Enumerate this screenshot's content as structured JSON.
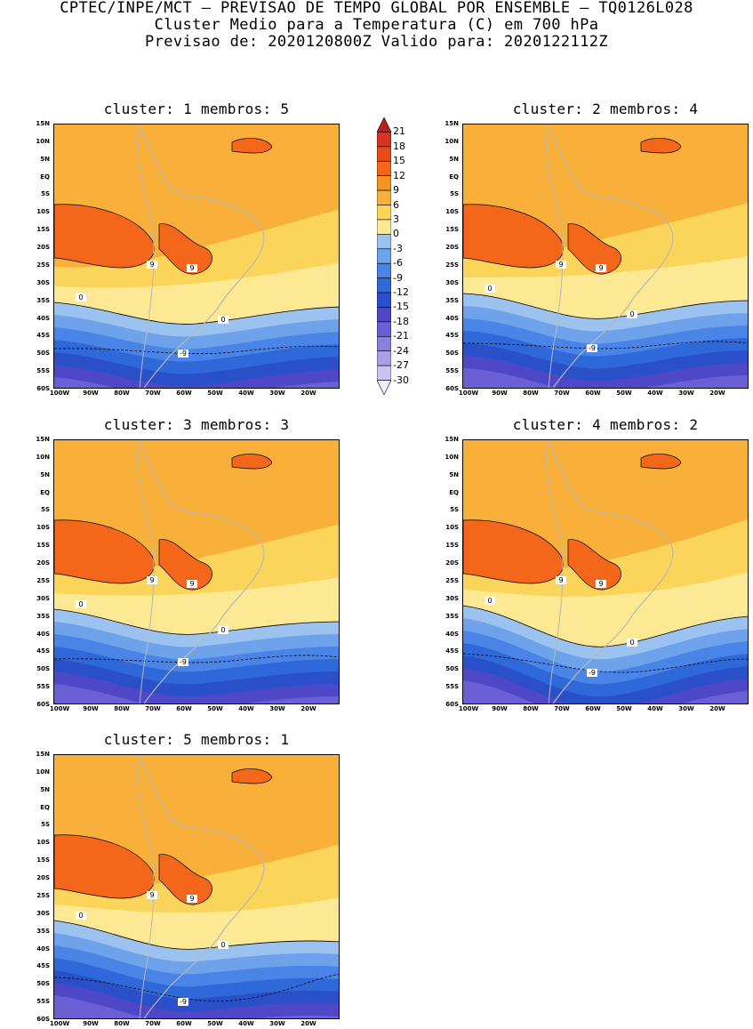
{
  "header": {
    "line1": "CPTEC/INPE/MCT – PREVISAO DE TEMPO GLOBAL POR ENSEMBLE – TQ0126L028",
    "line2": "Cluster Medio para a Temperatura (C) em 700 hPa",
    "line3": "Previsao de: 2020120800Z    Valido para: 2020122112Z"
  },
  "lat_labels": [
    "15N",
    "10N",
    "5N",
    "EQ",
    "5S",
    "10S",
    "15S",
    "20S",
    "25S",
    "30S",
    "35S",
    "40S",
    "45S",
    "50S",
    "55S",
    "60S"
  ],
  "lon_labels": [
    "100W",
    "90W",
    "80W",
    "70W",
    "60W",
    "50W",
    "40W",
    "30W",
    "20W"
  ],
  "colorbar": {
    "labels": [
      "21",
      "18",
      "15",
      "12",
      "9",
      "6",
      "3",
      "0",
      "-3",
      "-6",
      "-9",
      "-12",
      "-15",
      "-18",
      "-21",
      "-24",
      "-27",
      "-30"
    ],
    "colors": [
      "#b81f1f",
      "#d9321f",
      "#e84a1a",
      "#f4661a",
      "#f79420",
      "#f8b03a",
      "#fbd45a",
      "#fde993",
      "#9cc2f0",
      "#6ea3ec",
      "#4a84e6",
      "#2f68d9",
      "#2a50c9",
      "#4e47c8",
      "#6a5fd4",
      "#8a7fde",
      "#ab9fe7",
      "#cbc4f1",
      "#f0eefb"
    ]
  },
  "contour_labels": {
    "nine": "9",
    "zero": "0",
    "minus_nine": "-9"
  },
  "clusters": [
    {
      "title": "cluster: 1   membros: 5"
    },
    {
      "title": "cluster: 2   membros: 4"
    },
    {
      "title": "cluster: 3   membros: 3"
    },
    {
      "title": "cluster: 4   membros: 2"
    },
    {
      "title": "cluster: 5   membros: 1"
    }
  ]
}
